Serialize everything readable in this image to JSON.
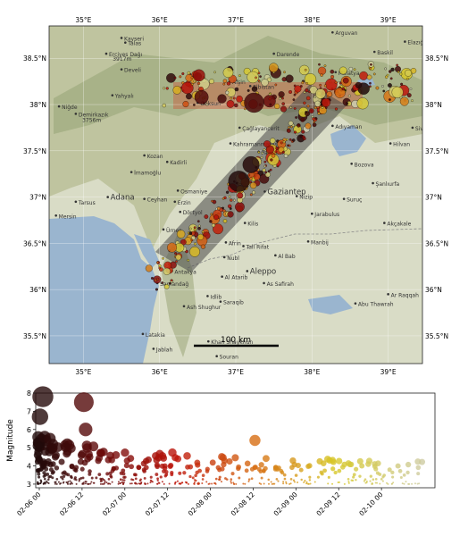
{
  "map": {
    "lon_ticks": [
      "35°E",
      "36°E",
      "37°E",
      "38°E",
      "39°E"
    ],
    "lat_ticks": [
      "38.5°N",
      "38°N",
      "37.5°N",
      "37°N",
      "36.5°N",
      "36°N",
      "35.5°N"
    ],
    "extent": {
      "lon": [
        34.55,
        39.45
      ],
      "lat": [
        35.2,
        38.85
      ]
    },
    "scale_bar_label": "100 km",
    "colors": {
      "sea": "#9ab5cf",
      "land": "#d8dcc4",
      "mountain": "#a5b07f",
      "rupture_band": "#555555",
      "rupture_box": "#c95b3e"
    },
    "places": [
      {
        "name": "Kayseri",
        "lon": 35.5,
        "lat": 38.72
      },
      {
        "name": "Erciyes Dağı",
        "lon": 35.3,
        "lat": 38.55
      },
      {
        "name": "3917m",
        "lon": 35.35,
        "lat": 38.5
      },
      {
        "name": "Talas",
        "lon": 35.55,
        "lat": 38.67
      },
      {
        "name": "Develi",
        "lon": 35.5,
        "lat": 38.38
      },
      {
        "name": "Yahyalı",
        "lon": 35.38,
        "lat": 38.1
      },
      {
        "name": "Niğde",
        "lon": 34.68,
        "lat": 37.98
      },
      {
        "name": "Demirkazık",
        "lon": 34.9,
        "lat": 37.9
      },
      {
        "name": "3756m",
        "lon": 34.95,
        "lat": 37.84
      },
      {
        "name": "Kozan",
        "lon": 35.8,
        "lat": 37.45
      },
      {
        "name": "Kadirli",
        "lon": 36.1,
        "lat": 37.38
      },
      {
        "name": "İmamoğlu",
        "lon": 35.63,
        "lat": 37.27
      },
      {
        "name": "Adana",
        "lon": 35.32,
        "lat": 37.0
      },
      {
        "name": "Ceyhan",
        "lon": 35.8,
        "lat": 36.98
      },
      {
        "name": "Osmaniye",
        "lon": 36.24,
        "lat": 37.07
      },
      {
        "name": "Tarsus",
        "lon": 34.9,
        "lat": 36.95
      },
      {
        "name": "Mersin",
        "lon": 34.64,
        "lat": 36.8
      },
      {
        "name": "Erzin",
        "lon": 36.2,
        "lat": 36.95
      },
      {
        "name": "Dörtyol",
        "lon": 36.27,
        "lat": 36.84
      },
      {
        "name": "Ürnes",
        "lon": 36.05,
        "lat": 36.65
      },
      {
        "name": "Antakya",
        "lon": 36.16,
        "lat": 36.2
      },
      {
        "name": "Samandağ",
        "lon": 35.97,
        "lat": 36.07
      },
      {
        "name": "Kilis",
        "lon": 37.12,
        "lat": 36.72
      },
      {
        "name": "Afrin",
        "lon": 36.87,
        "lat": 36.51
      },
      {
        "name": "Tall Rifat",
        "lon": 37.1,
        "lat": 36.47
      },
      {
        "name": "Al Bab",
        "lon": 37.52,
        "lat": 36.37
      },
      {
        "name": "Manbij",
        "lon": 37.95,
        "lat": 36.52
      },
      {
        "name": "Jarabulus",
        "lon": 38.0,
        "lat": 36.82
      },
      {
        "name": "Nubl",
        "lon": 36.85,
        "lat": 36.35
      },
      {
        "name": "Aleppo",
        "lon": 37.15,
        "lat": 36.2
      },
      {
        "name": "Al Atarib",
        "lon": 36.82,
        "lat": 36.14
      },
      {
        "name": "As Safirah",
        "lon": 37.37,
        "lat": 36.07
      },
      {
        "name": "Idlib",
        "lon": 36.63,
        "lat": 35.93
      },
      {
        "name": "Saraqib",
        "lon": 36.8,
        "lat": 35.87
      },
      {
        "name": "Ash Shughur",
        "lon": 36.32,
        "lat": 35.82
      },
      {
        "name": "Khan Shaykhun",
        "lon": 36.64,
        "lat": 35.44
      },
      {
        "name": "Latakia",
        "lon": 35.78,
        "lat": 35.52
      },
      {
        "name": "Jablah",
        "lon": 35.92,
        "lat": 35.36
      },
      {
        "name": "Souran",
        "lon": 36.75,
        "lat": 35.28
      },
      {
        "name": "Baniyas",
        "lon": 35.95,
        "lat": 35.18
      },
      {
        "name": "Gaziantep",
        "lon": 37.38,
        "lat": 37.06
      },
      {
        "name": "Nizip",
        "lon": 37.8,
        "lat": 37.01
      },
      {
        "name": "Suruç",
        "lon": 38.42,
        "lat": 36.98
      },
      {
        "name": "Şanlıurfa",
        "lon": 38.8,
        "lat": 37.15
      },
      {
        "name": "Akçakale",
        "lon": 38.95,
        "lat": 36.72
      },
      {
        "name": "Bozova",
        "lon": 38.52,
        "lat": 37.36
      },
      {
        "name": "Siverek",
        "lon": 39.32,
        "lat": 37.75
      },
      {
        "name": "Hilvan",
        "lon": 39.03,
        "lat": 37.58
      },
      {
        "name": "Adıyaman",
        "lon": 38.27,
        "lat": 37.77
      },
      {
        "name": "Malatya",
        "lon": 38.31,
        "lat": 38.35
      },
      {
        "name": "Baskil",
        "lon": 38.82,
        "lat": 38.57
      },
      {
        "name": "Elazığ",
        "lon": 39.22,
        "lat": 38.68
      },
      {
        "name": "Darende",
        "lon": 37.5,
        "lat": 38.55
      },
      {
        "name": "Arguvan",
        "lon": 38.27,
        "lat": 38.78
      },
      {
        "name": "Afşin",
        "lon": 36.92,
        "lat": 38.25
      },
      {
        "name": "Elbistan",
        "lon": 37.19,
        "lat": 38.2
      },
      {
        "name": "Göksun",
        "lon": 36.5,
        "lat": 38.02
      },
      {
        "name": "Çağlayancerit",
        "lon": 37.05,
        "lat": 37.75
      },
      {
        "name": "Kahramanmaraş",
        "lon": 36.93,
        "lat": 37.58
      },
      {
        "name": "Pazarcık",
        "lon": 37.3,
        "lat": 37.49
      },
      {
        "name": "Ar Raqqah",
        "lon": 39.0,
        "lat": 35.95
      },
      {
        "name": "Abu Thawrah",
        "lon": 38.57,
        "lat": 35.85
      }
    ]
  },
  "chart_data": {
    "type": "scatter",
    "title": "",
    "xlabel": "",
    "ylabel": "Magnitude",
    "x_tick_labels": [
      "02-06 00",
      "02-06 12",
      "02-07 00",
      "02-07 12",
      "02-08 00",
      "02-08 12",
      "02-09 00",
      "02-09 12",
      "02-10 00"
    ],
    "x_range_hours_since_first_tick": [
      -1,
      111
    ],
    "ylim": [
      2.8,
      8.0
    ],
    "y_ticks": [
      3,
      4,
      5,
      6,
      7,
      8
    ],
    "color_scale": "time: black -> dark red -> orange -> yellow -> pale gray",
    "notable_events": [
      {
        "time": "02-06 01",
        "magnitude": 7.8
      },
      {
        "time": "02-06 12",
        "magnitude": 7.5
      },
      {
        "time": "02-06 00",
        "magnitude": 6.7
      },
      {
        "time": "02-06 13",
        "magnitude": 6.0
      },
      {
        "time": "02-08 13",
        "magnitude": 5.4
      }
    ]
  }
}
